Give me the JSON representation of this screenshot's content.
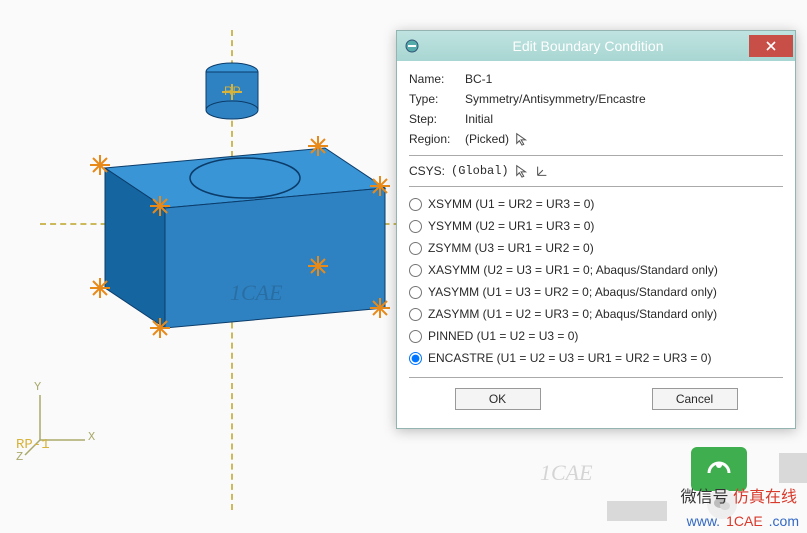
{
  "dialog": {
    "title": "Edit Boundary Condition",
    "fields": {
      "name_label": "Name:",
      "name_value": "BC-1",
      "type_label": "Type:",
      "type_value": "Symmetry/Antisymmetry/Encastre",
      "step_label": "Step:",
      "step_value": "Initial",
      "region_label": "Region:",
      "region_value": "(Picked)"
    },
    "csys_label": "CSYS:",
    "csys_value": "(Global)",
    "options": [
      {
        "label": "XSYMM (U1 = UR2 = UR3 = 0)",
        "selected": false
      },
      {
        "label": "YSYMM (U2 = UR1 = UR3 = 0)",
        "selected": false
      },
      {
        "label": "ZSYMM (U3 = UR1 = UR2 = 0)",
        "selected": false
      },
      {
        "label": "XASYMM (U2 = U3 = UR1 = 0; Abaqus/Standard only)",
        "selected": false
      },
      {
        "label": "YASYMM (U1 = U3 = UR2 = 0; Abaqus/Standard only)",
        "selected": false
      },
      {
        "label": "ZASYMM (U1 = U2 = UR3 = 0; Abaqus/Standard only)",
        "selected": false
      },
      {
        "label": "PINNED (U1 = U2 = U3 = 0)",
        "selected": false
      },
      {
        "label": "ENCASTRE (U1 = U2 = U3 = UR1 = UR2 = UR3 = 0)",
        "selected": true
      }
    ],
    "ok_label": "OK",
    "cancel_label": "Cancel"
  },
  "viewport": {
    "rp_caption": "RP",
    "rp_anchor_label": "RP-1",
    "axis_x": "X",
    "axis_y": "Y",
    "axis_z": "Z",
    "watermark": "1CAE",
    "colors": {
      "part_fill": "#2f82c1",
      "part_top": "#3a95d6",
      "part_side": "#1565a0",
      "cyl_fill": "#2f82c1",
      "cyl_top": "#3a95d6",
      "bc_arrow": "#e88a1a",
      "dash": "#cbb95c",
      "ellipse": "#0b3c6a"
    }
  },
  "footer": {
    "chinese": "微信号",
    "brand_cn": "仿真在线",
    "host_prefix": "www.",
    "host_mid": "1CAE",
    "host_suffix": ".com"
  }
}
